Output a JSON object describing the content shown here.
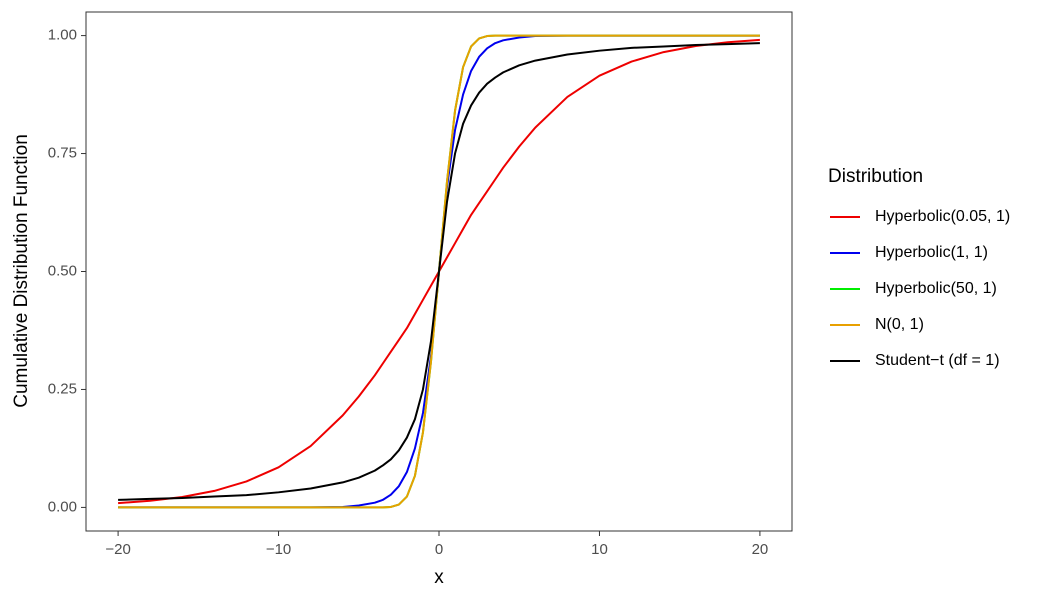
{
  "chart_data": {
    "type": "line",
    "xlabel": "x",
    "ylabel": "Cumulative Distribution Function",
    "legend_title": "Distribution",
    "legend": "right",
    "x": [
      -20,
      -18,
      -16,
      -14,
      -12,
      -10,
      -8,
      -6,
      -5,
      -4,
      -3.5,
      -3,
      -2.5,
      -2,
      -1.5,
      -1,
      -0.5,
      0,
      0.5,
      1,
      1.5,
      2,
      2.5,
      3,
      3.5,
      4,
      5,
      6,
      8,
      10,
      12,
      14,
      16,
      18,
      20
    ],
    "series": [
      {
        "name": "Hyperbolic(0.05, 1)",
        "color": "#ee0000",
        "values": [
          0.009,
          0.014,
          0.022,
          0.035,
          0.055,
          0.085,
          0.13,
          0.195,
          0.235,
          0.28,
          0.305,
          0.33,
          0.355,
          0.38,
          0.41,
          0.44,
          0.47,
          0.5,
          0.53,
          0.56,
          0.59,
          0.62,
          0.645,
          0.67,
          0.695,
          0.72,
          0.765,
          0.805,
          0.87,
          0.915,
          0.945,
          0.965,
          0.978,
          0.986,
          0.991
        ]
      },
      {
        "name": "Hyperbolic(1, 1)",
        "color": "#0000ee",
        "values": [
          0,
          0,
          0,
          0,
          0,
          0,
          0,
          0.001,
          0.004,
          0.01,
          0.016,
          0.027,
          0.045,
          0.075,
          0.125,
          0.2,
          0.32,
          0.5,
          0.68,
          0.8,
          0.875,
          0.925,
          0.955,
          0.973,
          0.984,
          0.99,
          0.996,
          0.999,
          1,
          1,
          1,
          1,
          1,
          1,
          1
        ]
      },
      {
        "name": "Hyperbolic(50, 1)",
        "color": "#00ee00",
        "values": [
          0,
          0,
          0,
          0,
          0,
          0,
          0,
          0,
          0,
          0,
          0,
          0.001,
          0.006,
          0.023,
          0.067,
          0.159,
          0.309,
          0.5,
          0.691,
          0.841,
          0.933,
          0.977,
          0.994,
          0.999,
          1,
          1,
          1,
          1,
          1,
          1,
          1,
          1,
          1,
          1,
          1
        ]
      },
      {
        "name": "N(0, 1)",
        "color": "#e8a000",
        "values": [
          0,
          0,
          0,
          0,
          0,
          0,
          0,
          0,
          0,
          0,
          0,
          0.001,
          0.006,
          0.023,
          0.067,
          0.159,
          0.309,
          0.5,
          0.691,
          0.841,
          0.933,
          0.977,
          0.994,
          0.999,
          1,
          1,
          1,
          1,
          1,
          1,
          1,
          1,
          1,
          1,
          1
        ]
      },
      {
        "name": "Student−t (df = 1)",
        "color": "#000000",
        "values": [
          0.016,
          0.018,
          0.02,
          0.023,
          0.026,
          0.032,
          0.04,
          0.053,
          0.063,
          0.078,
          0.089,
          0.102,
          0.121,
          0.148,
          0.187,
          0.25,
          0.352,
          0.5,
          0.648,
          0.75,
          0.813,
          0.852,
          0.879,
          0.898,
          0.911,
          0.922,
          0.937,
          0.947,
          0.96,
          0.968,
          0.974,
          0.977,
          0.98,
          0.982,
          0.984
        ]
      }
    ],
    "xlim": [
      -22,
      22
    ],
    "xticks": [
      {
        "value": -20,
        "label": "−20"
      },
      {
        "value": -10,
        "label": "−10"
      },
      0,
      10,
      20
    ],
    "ylim": [
      -0.05,
      1.05
    ],
    "yticks": [
      {
        "value": 0,
        "label": "0.00"
      },
      {
        "value": 0.25,
        "label": "0.25"
      },
      {
        "value": 0.5,
        "label": "0.50"
      },
      {
        "value": 0.75,
        "label": "0.75"
      },
      {
        "value": 1,
        "label": "1.00"
      }
    ],
    "grid": false
  }
}
